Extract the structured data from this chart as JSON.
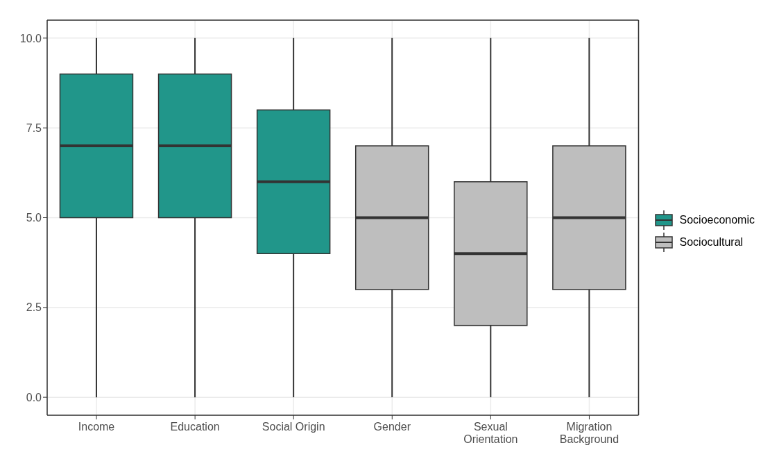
{
  "chart_data": {
    "type": "box",
    "categories": [
      "Income",
      "Education",
      "Social Origin",
      "Gender",
      "Sexual Orientation",
      "Migration Background"
    ],
    "series": [
      {
        "name": "Socioeconomic",
        "color": "#21968a",
        "boxes": [
          {
            "low": 0,
            "q1": 5,
            "median": 7,
            "q3": 9,
            "high": 10
          },
          {
            "low": 0,
            "q1": 5,
            "median": 7,
            "q3": 9,
            "high": 10
          },
          {
            "low": 0,
            "q1": 4,
            "median": 6,
            "q3": 8,
            "high": 10
          },
          null,
          null,
          null
        ]
      },
      {
        "name": "Sociocultural",
        "color": "#bebebe",
        "boxes": [
          null,
          null,
          null,
          {
            "low": 0,
            "q1": 3,
            "median": 5,
            "q3": 7,
            "high": 10
          },
          {
            "low": 0,
            "q1": 2,
            "median": 4,
            "q3": 6,
            "high": 10
          },
          {
            "low": 0,
            "q1": 3,
            "median": 5,
            "q3": 7,
            "high": 10
          }
        ]
      }
    ],
    "ylim": [
      -0.5,
      10.5
    ],
    "yticks": [
      {
        "value": 0,
        "label": "0.0"
      },
      {
        "value": 2.5,
        "label": "2.5"
      },
      {
        "value": 5,
        "label": "5.0"
      },
      {
        "value": 7.5,
        "label": "7.5"
      },
      {
        "value": 10,
        "label": "10.0"
      }
    ],
    "grid": true,
    "legend": "right"
  }
}
